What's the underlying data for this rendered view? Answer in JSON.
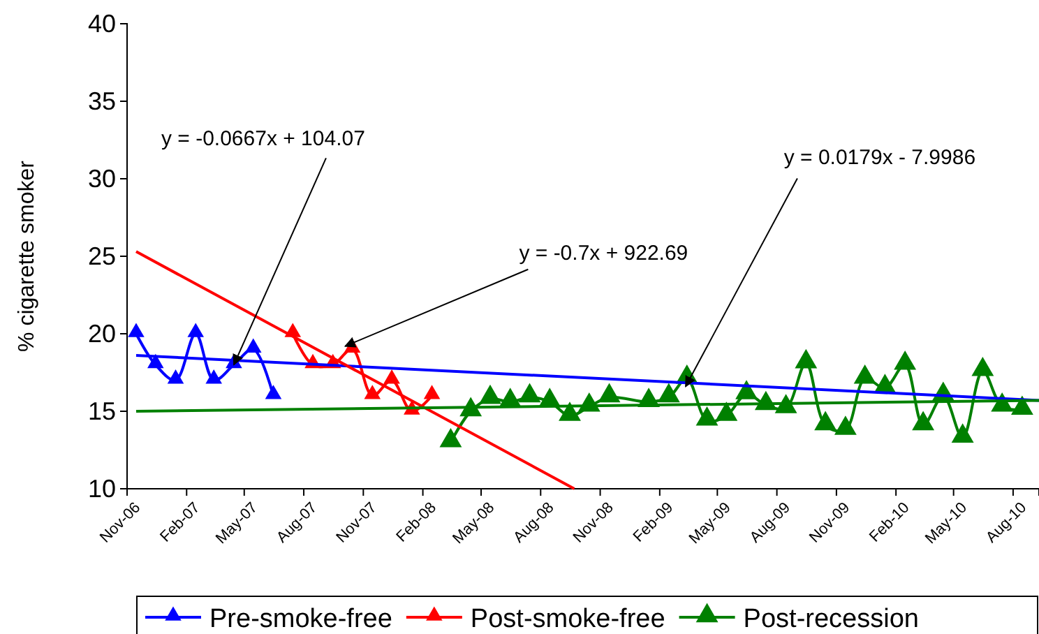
{
  "chart_data": {
    "type": "line",
    "ylabel": "% cigarette smoker",
    "xlim": [
      "2006-11-01",
      "2010-09-10"
    ],
    "ylim": [
      10,
      40
    ],
    "yticks": [
      10,
      15,
      20,
      25,
      30,
      35,
      40
    ],
    "xticks": [
      {
        "value": "2006-11-01",
        "label": "Nov-06"
      },
      {
        "value": "2007-02-01",
        "label": "Feb-07"
      },
      {
        "value": "2007-05-01",
        "label": "May-07"
      },
      {
        "value": "2007-08-01",
        "label": "Aug-07"
      },
      {
        "value": "2007-11-01",
        "label": "Nov-07"
      },
      {
        "value": "2008-02-01",
        "label": "Feb-08"
      },
      {
        "value": "2008-05-01",
        "label": "May-08"
      },
      {
        "value": "2008-08-01",
        "label": "Aug-08"
      },
      {
        "value": "2008-11-01",
        "label": "Nov-08"
      },
      {
        "value": "2009-02-01",
        "label": "Feb-09"
      },
      {
        "value": "2009-05-01",
        "label": "May-09"
      },
      {
        "value": "2009-08-01",
        "label": "Aug-09"
      },
      {
        "value": "2009-11-01",
        "label": "Nov-09"
      },
      {
        "value": "2010-02-01",
        "label": "Feb-10"
      },
      {
        "value": "2010-05-01",
        "label": "May-10"
      },
      {
        "value": "2010-08-01",
        "label": "Aug-10"
      }
    ],
    "grid": false,
    "legend": "bottom",
    "marker": "triangle",
    "line_style": "solid",
    "series": [
      {
        "name": "Pre-smoke-free",
        "color": "#0000ff",
        "x": [
          "2006-11-15",
          "2006-12-15",
          "2007-01-15",
          "2007-02-15",
          "2007-03-15",
          "2007-04-15",
          "2007-05-15",
          "2007-06-15"
        ],
        "values": [
          20,
          18,
          17,
          20,
          17,
          18,
          19,
          16
        ]
      },
      {
        "name": "Post-smoke-free",
        "color": "#ff0000",
        "x": [
          "2007-07-15",
          "2007-08-15",
          "2007-09-15",
          "2007-10-15",
          "2007-11-15",
          "2007-12-15",
          "2008-01-15",
          "2008-02-15"
        ],
        "values": [
          20,
          18,
          18,
          19,
          16,
          17,
          15,
          16
        ]
      },
      {
        "name": "Post-recession",
        "color": "#008000",
        "x": [
          "2008-03-15",
          "2008-04-15",
          "2008-05-15",
          "2008-06-15",
          "2008-07-15",
          "2008-08-15",
          "2008-09-15",
          "2008-10-15",
          "2008-11-15",
          "2009-01-15",
          "2009-02-15",
          "2009-03-15",
          "2009-04-15",
          "2009-05-15",
          "2009-06-15",
          "2009-07-15",
          "2009-08-15",
          "2009-09-15",
          "2009-10-15",
          "2009-11-15",
          "2009-12-15",
          "2010-01-15",
          "2010-02-15",
          "2010-03-15",
          "2010-04-15",
          "2010-05-15",
          "2010-06-15",
          "2010-07-15",
          "2010-08-15"
        ],
        "values": [
          13,
          15,
          15.8,
          15.6,
          15.9,
          15.6,
          14.7,
          15.3,
          15.9,
          15.6,
          15.9,
          17.1,
          14.4,
          14.7,
          16.1,
          15.4,
          15.2,
          18.1,
          14.1,
          13.8,
          17.1,
          16.5,
          18,
          14.1,
          16,
          13.3,
          17.6,
          15.3,
          15.1
        ]
      },
      {
        "type": "line",
        "color": "#0000ff",
        "marker": "none",
        "x": [
          "2006-11-15",
          "2010-09-10"
        ],
        "values": [
          18.6,
          15.7
        ]
      },
      {
        "type": "line",
        "color": "#ff0000",
        "marker": "none",
        "x": [
          "2006-11-15",
          "2008-09-22"
        ],
        "values": [
          25.3,
          10
        ]
      },
      {
        "type": "line",
        "color": "#008000",
        "marker": "none",
        "x": [
          "2006-11-15",
          "2010-09-10"
        ],
        "values": [
          15,
          15.7
        ]
      }
    ],
    "annotations": [
      {
        "text": "y = -0.0667x + 104.07",
        "x": "2007-04-15",
        "y": 18
      },
      {
        "text": "y = -0.7x + 922.69",
        "x": "2007-10-04",
        "y": 19.2
      },
      {
        "text": "y = 0.0179x - 7.9986",
        "x": "2009-03-13",
        "y": 16.6
      }
    ]
  }
}
